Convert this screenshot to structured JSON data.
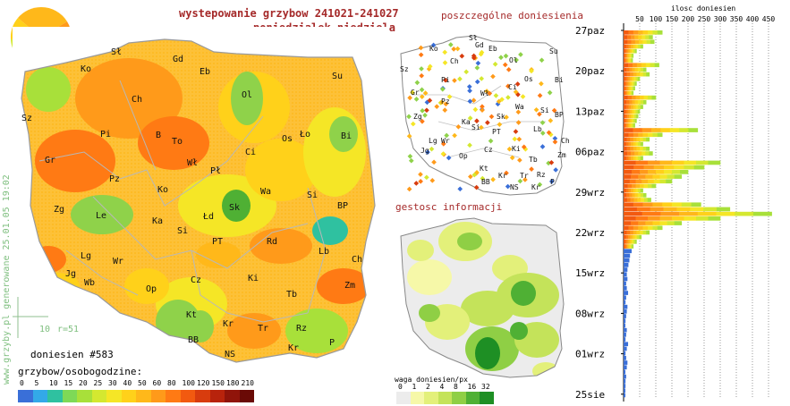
{
  "title": {
    "line1": "wystepowanie grzybow 241021-241027",
    "line2": "poniedzialek-niedziela"
  },
  "panels": {
    "reports": "poszczególne doniesienia",
    "density": "gestosc informacji"
  },
  "side_text": "www.grzyby.pl generowane 25.01.05 19:02",
  "scale": {
    "distance": "10",
    "radius": "r=51"
  },
  "count_label": "doniesien #583",
  "legend": {
    "title": "grzybow/osobogodzine:",
    "values": [
      "0",
      "5",
      "10",
      "15",
      "20",
      "25",
      "30",
      "40",
      "50",
      "60",
      "80",
      "100",
      "120",
      "150",
      "180",
      "210"
    ],
    "colors": [
      "#3a6fd8",
      "#33a9e8",
      "#2fc1a0",
      "#7ed957",
      "#a8e03a",
      "#d4e830",
      "#f5e626",
      "#ffd11a",
      "#ffb81a",
      "#ff9a1a",
      "#ff7a14",
      "#f25a10",
      "#d83c0e",
      "#b8230c",
      "#90140a",
      "#6a0a06"
    ]
  },
  "density_legend": {
    "title": "waga doniesien/px",
    "values": [
      "0",
      "1",
      "2",
      "4",
      "8",
      "16",
      "32"
    ],
    "colors": [
      "#ececec",
      "#f6f8a8",
      "#e3f07a",
      "#c4e35a",
      "#8fcf45",
      "#4fb034",
      "#1e8f24"
    ]
  },
  "chart": {
    "title": "ilosc doniesien",
    "ticks": [
      "50",
      "100",
      "150",
      "200",
      "250",
      "300",
      "350",
      "400",
      "450"
    ],
    "dates": [
      "27paz",
      "20paz",
      "13paz",
      "06paz",
      "29wrz",
      "22wrz",
      "15wrz",
      "08wrz",
      "01wrz",
      "25sie"
    ]
  },
  "cities_main": [
    "Sł",
    "Gd",
    "Ko",
    "Eb",
    "Su",
    "Ch",
    "Ol",
    "Sz",
    "Pi",
    "B",
    "To",
    "Ło",
    "Bi",
    "Os",
    "Gr",
    "Wł",
    "Ci",
    "Pł",
    "Pz",
    "Ko",
    "Wa",
    "Si",
    "Zg",
    "Le",
    "Ka",
    "Łd",
    "Sk",
    "BP",
    "Si",
    "PT",
    "Rd",
    "Lb",
    "Lg",
    "Wr",
    "Jg",
    "Wb",
    "Op",
    "Cz",
    "Ki",
    "Ch",
    "Zm",
    "Kt",
    "Tb",
    "Kr",
    "BB",
    "Tr",
    "Rz",
    "NS",
    "Kr",
    "P"
  ],
  "map_colors": {
    "country_fill": "#fdb71a",
    "border": "#9a9a9a",
    "regions": "#b8b8b8",
    "low": "#8fd24a",
    "mid": "#f5e626",
    "high": "#ff7a14"
  }
}
